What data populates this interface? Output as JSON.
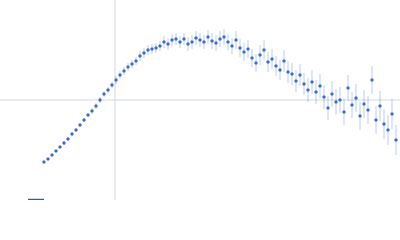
{
  "chart_data": {
    "type": "scatter",
    "x": [
      44,
      48,
      52,
      56,
      60,
      64,
      68,
      72,
      76,
      80,
      84,
      88,
      92,
      96,
      100,
      104,
      108,
      112,
      116,
      120,
      124,
      128,
      132,
      136,
      140,
      144,
      148,
      152,
      156,
      160,
      164,
      168,
      172,
      176,
      180,
      184,
      188,
      192,
      196,
      200,
      204,
      208,
      212,
      216,
      220,
      224,
      228,
      232,
      236,
      240,
      244,
      248,
      252,
      256,
      260,
      264,
      268,
      272,
      276,
      280,
      284,
      288,
      292,
      296,
      300,
      304,
      308,
      312,
      316,
      320,
      324,
      328,
      332,
      336,
      340,
      344,
      348,
      352,
      356,
      360,
      364,
      368,
      372,
      376,
      380,
      384,
      388,
      392,
      396
    ],
    "series": [
      {
        "color": "#3a6cc8",
        "values": [
          38,
          41,
          45,
          49,
          53,
          57,
          61,
          66,
          70,
          75,
          80,
          85,
          89,
          94,
          100,
          106,
          110,
          115,
          120,
          125,
          129,
          133,
          136,
          139,
          144,
          147,
          150,
          151,
          152,
          154,
          158,
          156,
          160,
          161,
          158,
          161,
          156,
          158,
          162,
          160,
          158,
          163,
          159,
          157,
          161,
          163,
          158,
          154,
          160,
          152,
          148,
          151,
          142,
          137,
          145,
          150,
          138,
          141,
          134,
          130,
          139,
          128,
          126,
          119,
          125,
          116,
          110,
          118,
          108,
          114,
          103,
          92,
          106,
          98,
          100,
          88,
          112,
          95,
          102,
          84,
          96,
          90,
          120,
          80,
          94,
          76,
          70,
          86,
          60
        ],
        "errors": [
          1,
          1,
          1,
          1,
          1,
          2,
          2,
          2,
          2,
          2,
          2,
          2,
          3,
          3,
          3,
          3,
          3,
          3,
          4,
          4,
          4,
          4,
          4,
          4,
          5,
          5,
          5,
          5,
          5,
          5,
          6,
          6,
          6,
          6,
          6,
          6,
          7,
          7,
          7,
          7,
          7,
          7,
          8,
          8,
          8,
          8,
          8,
          8,
          9,
          9,
          9,
          9,
          9,
          9,
          10,
          10,
          10,
          10,
          10,
          10,
          11,
          11,
          11,
          11,
          11,
          11,
          12,
          12,
          12,
          12,
          12,
          12,
          13,
          13,
          13,
          13,
          13,
          13,
          14,
          14,
          14,
          14,
          14,
          14,
          15,
          15,
          15,
          15,
          15
        ]
      }
    ],
    "xlim": [
      0,
      400
    ],
    "ylim": [
      0,
      200
    ],
    "xticks": [
      115
    ],
    "yticks": [
      100
    ],
    "grid": true
  }
}
